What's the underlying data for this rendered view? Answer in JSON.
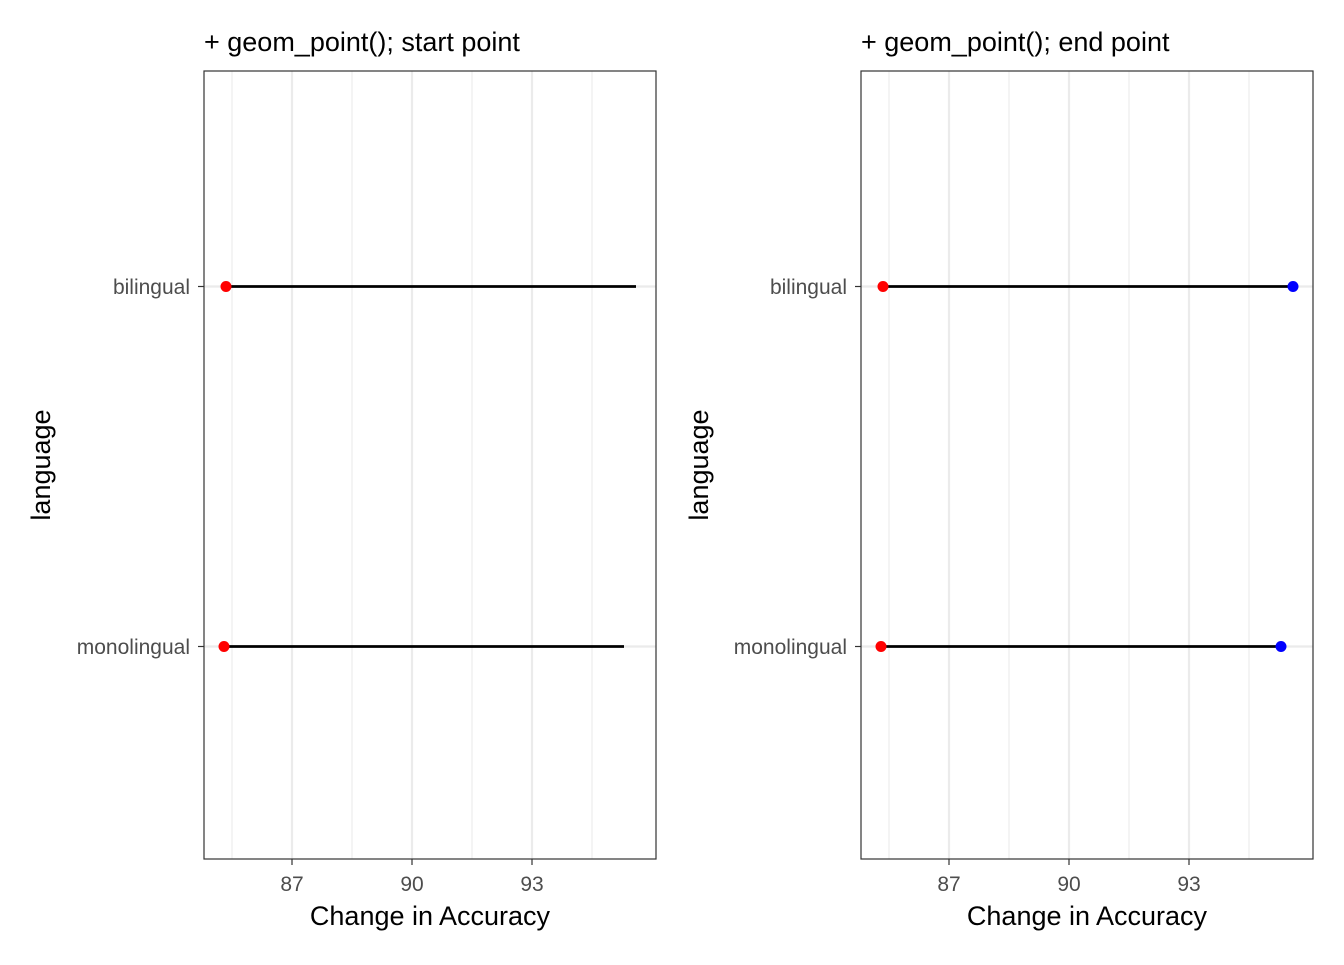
{
  "chart_data": [
    {
      "type": "dumbbell",
      "title": "+ geom_point(); start point",
      "xlabel": "Change in Accuracy",
      "ylabel": "language",
      "xlim": [
        84.8,
        96.1
      ],
      "xticks": [
        87,
        90,
        93
      ],
      "xtick_labels": [
        "87",
        "90",
        "93"
      ],
      "categories": [
        "monolingual",
        "bilingual"
      ],
      "segments": [
        {
          "category": "bilingual",
          "start": 85.35,
          "end": 95.6
        },
        {
          "category": "monolingual",
          "start": 85.3,
          "end": 95.3
        }
      ],
      "points": [
        {
          "category": "bilingual",
          "value": 85.35,
          "color": "#ff0000"
        },
        {
          "category": "monolingual",
          "value": 85.3,
          "color": "#ff0000"
        }
      ],
      "grid": true
    },
    {
      "type": "dumbbell",
      "title": "+ geom_point(); end point",
      "xlabel": "Change in Accuracy",
      "ylabel": "language",
      "xlim": [
        84.8,
        96.1
      ],
      "xticks": [
        87,
        90,
        93
      ],
      "xtick_labels": [
        "87",
        "90",
        "93"
      ],
      "categories": [
        "monolingual",
        "bilingual"
      ],
      "segments": [
        {
          "category": "bilingual",
          "start": 85.35,
          "end": 95.6
        },
        {
          "category": "monolingual",
          "start": 85.3,
          "end": 95.3
        }
      ],
      "points": [
        {
          "category": "bilingual",
          "value": 85.35,
          "color": "#ff0000"
        },
        {
          "category": "monolingual",
          "value": 85.3,
          "color": "#ff0000"
        },
        {
          "category": "bilingual",
          "value": 95.6,
          "color": "#0000ff"
        },
        {
          "category": "monolingual",
          "value": 95.3,
          "color": "#0000ff"
        }
      ],
      "grid": true
    }
  ]
}
